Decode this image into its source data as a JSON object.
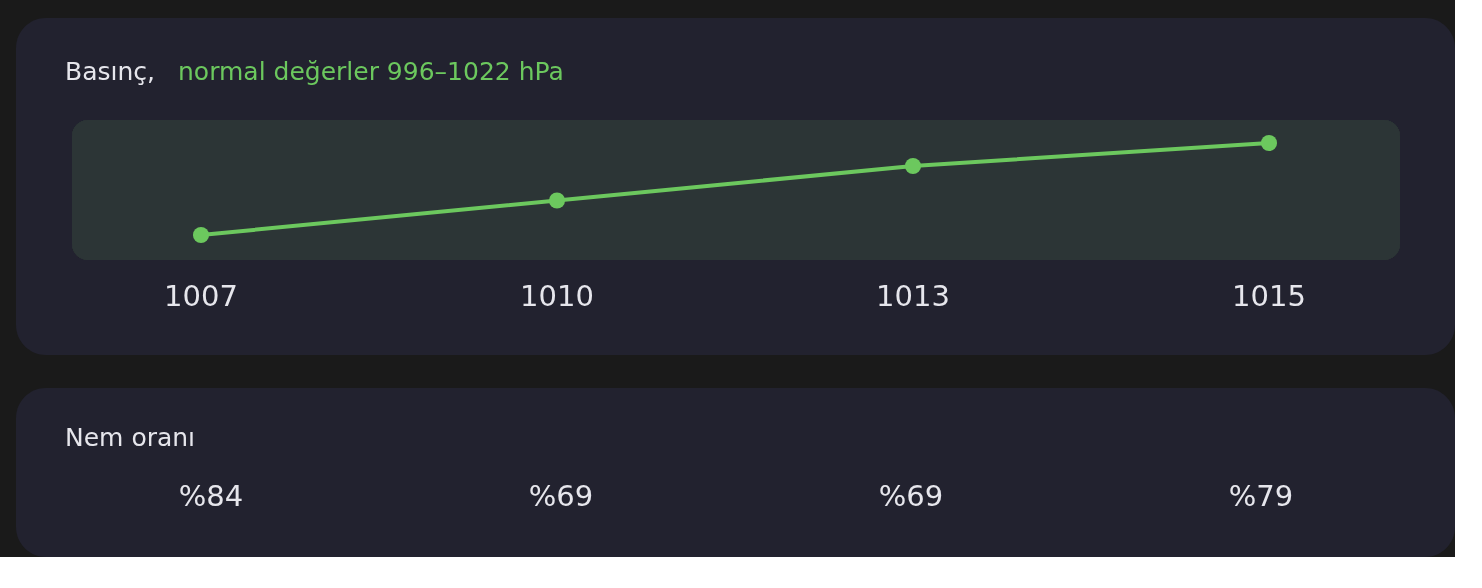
{
  "chart_data": [
    {
      "type": "line",
      "title": "Basınç,",
      "subtitle": "normal değerler 996–1022 hPa",
      "categories": [
        null,
        null,
        null,
        null
      ],
      "values": [
        1007,
        1010,
        1013,
        1015
      ],
      "color": "#6cc85e",
      "marker": "circle",
      "data_labels": true
    },
    {
      "type": "other",
      "title": "Nem oranı",
      "annotations": [
        "%84",
        "%69",
        "%69",
        "%79"
      ]
    }
  ]
}
